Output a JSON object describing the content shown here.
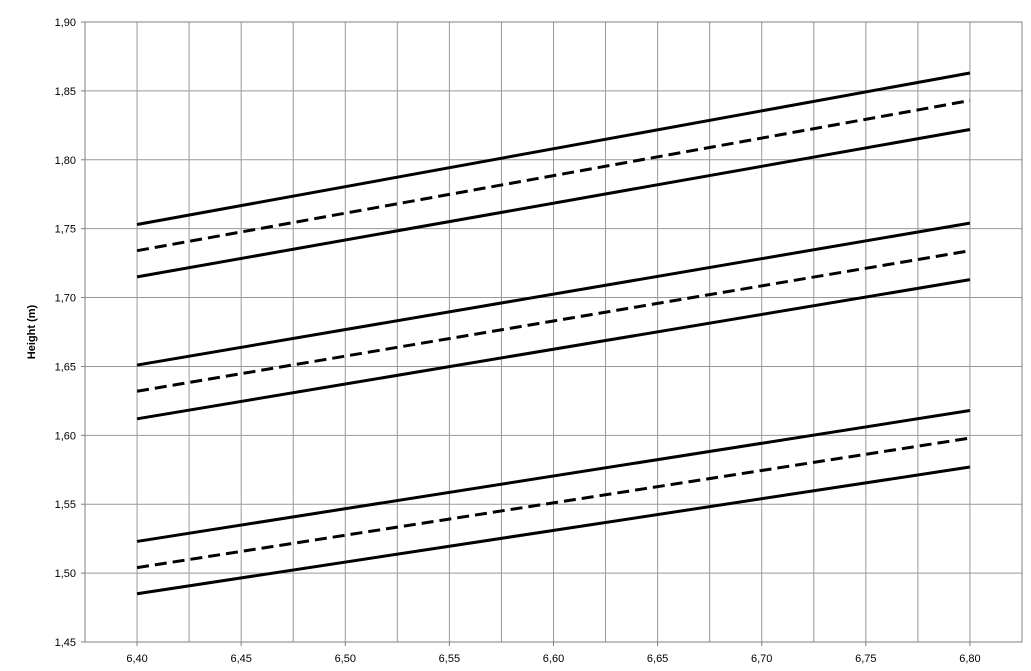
{
  "chart_data": {
    "type": "line",
    "title": "",
    "xlabel": "",
    "ylabel": "Height (m)",
    "xlim": [
      6.375,
      6.825
    ],
    "ylim": [
      1.45,
      1.9
    ],
    "x_ticks": [
      "6,40",
      "6,45",
      "6,50",
      "6,55",
      "6,60",
      "6,65",
      "6,70",
      "6,75",
      "6,80"
    ],
    "y_ticks": [
      "1,45",
      "1,50",
      "1,55",
      "1,60",
      "1,65",
      "1,70",
      "1,75",
      "1,80",
      "1,85",
      "1,90"
    ],
    "grid": true,
    "legend": "none",
    "series": [
      {
        "style": "solid",
        "x": [
          6.4,
          6.8
        ],
        "y": [
          1.753,
          1.863
        ]
      },
      {
        "style": "dashed",
        "x": [
          6.4,
          6.8
        ],
        "y": [
          1.734,
          1.843
        ]
      },
      {
        "style": "solid",
        "x": [
          6.4,
          6.8
        ],
        "y": [
          1.715,
          1.822
        ]
      },
      {
        "style": "solid",
        "x": [
          6.4,
          6.8
        ],
        "y": [
          1.651,
          1.754
        ]
      },
      {
        "style": "dashed",
        "x": [
          6.4,
          6.8
        ],
        "y": [
          1.632,
          1.734
        ]
      },
      {
        "style": "solid",
        "x": [
          6.4,
          6.8
        ],
        "y": [
          1.612,
          1.713
        ]
      },
      {
        "style": "solid",
        "x": [
          6.4,
          6.8
        ],
        "y": [
          1.523,
          1.618
        ]
      },
      {
        "style": "dashed",
        "x": [
          6.4,
          6.8
        ],
        "y": [
          1.504,
          1.598
        ]
      },
      {
        "style": "solid",
        "x": [
          6.4,
          6.8
        ],
        "y": [
          1.485,
          1.577
        ]
      }
    ],
    "colors": {
      "line": "#000000",
      "grid": "#999999",
      "frame": "#808080"
    }
  }
}
